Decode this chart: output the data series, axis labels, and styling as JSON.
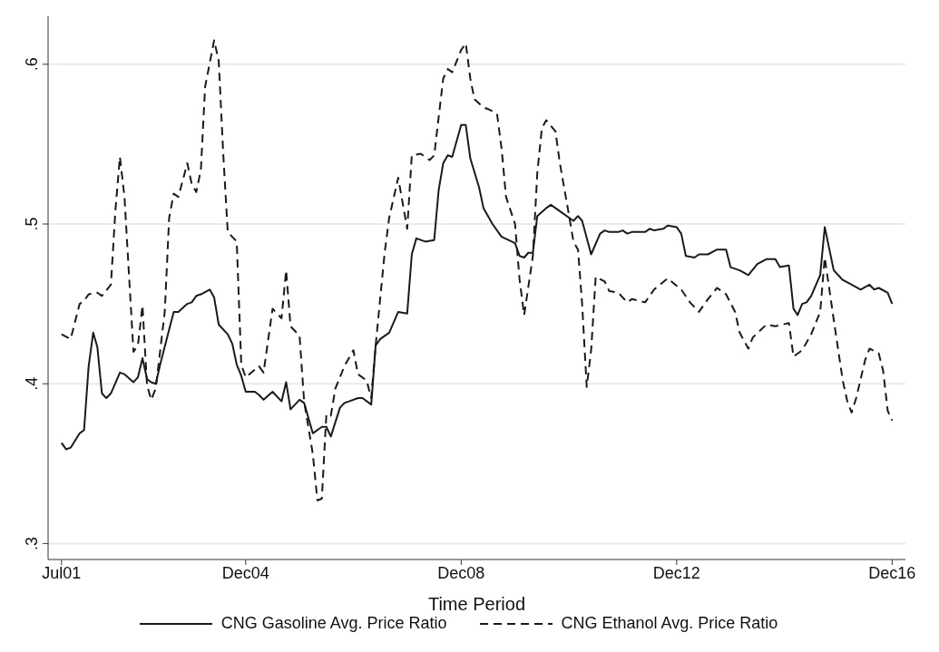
{
  "chart_data": {
    "type": "line",
    "xlabel": "Time Period",
    "xlim": [
      "2001-04",
      "2017-03"
    ],
    "xticks": [
      {
        "value": "2001-07",
        "label": "Jul01"
      },
      {
        "value": "2004-12",
        "label": "Dec04"
      },
      {
        "value": "2008-12",
        "label": "Dec08"
      },
      {
        "value": "2012-12",
        "label": "Dec12"
      },
      {
        "value": "2016-12",
        "label": "Dec16"
      }
    ],
    "ylim": [
      0.29,
      0.63
    ],
    "yticks": [
      {
        "value": 0.3,
        "label": ".3"
      },
      {
        "value": 0.4,
        "label": ".4"
      },
      {
        "value": 0.5,
        "label": ".5"
      },
      {
        "value": 0.6,
        "label": ".6"
      }
    ],
    "grid": "y",
    "legend": "bottom",
    "marker": "none",
    "series": [
      {
        "name": "CNG Gasoline Avg. Price Ratio",
        "color": "#1a1a1a",
        "line_style": "solid",
        "x": [
          "2001-07",
          "2001-08",
          "2001-09",
          "2001-11",
          "2001-12",
          "2002-01",
          "2002-02",
          "2002-03",
          "2002-04",
          "2002-05",
          "2002-06",
          "2002-08",
          "2002-09",
          "2002-11",
          "2002-12",
          "2003-01",
          "2003-02",
          "2003-03",
          "2003-04",
          "2003-05",
          "2003-07",
          "2003-08",
          "2003-09",
          "2003-11",
          "2003-12",
          "2004-01",
          "2004-02",
          "2004-04",
          "2004-05",
          "2004-06",
          "2004-08",
          "2004-09",
          "2004-10",
          "2004-11",
          "2004-12",
          "2005-02",
          "2005-03",
          "2005-04",
          "2005-06",
          "2005-08",
          "2005-09",
          "2005-10",
          "2005-12",
          "2006-01",
          "2006-02",
          "2006-03",
          "2006-05",
          "2006-06",
          "2006-07",
          "2006-09",
          "2006-10",
          "2006-11",
          "2007-01",
          "2007-02",
          "2007-04",
          "2007-05",
          "2007-06",
          "2007-08",
          "2007-10",
          "2007-12",
          "2008-01",
          "2008-02",
          "2008-04",
          "2008-06",
          "2008-07",
          "2008-08",
          "2008-09",
          "2008-10",
          "2008-12",
          "2009-01",
          "2009-02",
          "2009-04",
          "2009-05",
          "2009-07",
          "2009-09",
          "2009-12",
          "2010-01",
          "2010-02",
          "2010-03",
          "2010-04",
          "2010-05",
          "2010-07",
          "2010-08",
          "2010-10",
          "2011-01",
          "2011-02",
          "2011-03",
          "2011-05",
          "2011-07",
          "2011-08",
          "2011-09",
          "2011-11",
          "2011-12",
          "2012-01",
          "2012-02",
          "2012-05",
          "2012-06",
          "2012-07",
          "2012-09",
          "2012-10",
          "2012-12",
          "2013-01",
          "2013-02",
          "2013-04",
          "2013-05",
          "2013-07",
          "2013-09",
          "2013-11",
          "2013-12",
          "2014-02",
          "2014-04",
          "2014-06",
          "2014-08",
          "2014-10",
          "2014-11",
          "2015-01",
          "2015-02",
          "2015-03",
          "2015-04",
          "2015-05",
          "2015-06",
          "2015-08",
          "2015-09",
          "2015-11",
          "2016-01",
          "2016-03",
          "2016-05",
          "2016-07",
          "2016-08",
          "2016-09",
          "2016-11",
          "2016-12"
        ],
        "values": [
          0.363,
          0.359,
          0.36,
          0.369,
          0.371,
          0.411,
          0.432,
          0.423,
          0.394,
          0.391,
          0.394,
          0.407,
          0.406,
          0.401,
          0.404,
          0.416,
          0.403,
          0.401,
          0.4,
          0.412,
          0.434,
          0.445,
          0.445,
          0.45,
          0.451,
          0.455,
          0.456,
          0.459,
          0.454,
          0.437,
          0.431,
          0.425,
          0.412,
          0.405,
          0.395,
          0.395,
          0.393,
          0.39,
          0.395,
          0.389,
          0.401,
          0.384,
          0.39,
          0.388,
          0.378,
          0.369,
          0.373,
          0.373,
          0.367,
          0.385,
          0.388,
          0.389,
          0.391,
          0.391,
          0.387,
          0.424,
          0.428,
          0.432,
          0.445,
          0.444,
          0.481,
          0.491,
          0.489,
          0.49,
          0.521,
          0.538,
          0.543,
          0.542,
          0.562,
          0.562,
          0.541,
          0.523,
          0.51,
          0.5,
          0.492,
          0.488,
          0.48,
          0.479,
          0.482,
          0.482,
          0.505,
          0.51,
          0.512,
          0.508,
          0.502,
          0.505,
          0.502,
          0.481,
          0.494,
          0.496,
          0.495,
          0.495,
          0.496,
          0.494,
          0.495,
          0.495,
          0.497,
          0.496,
          0.497,
          0.499,
          0.498,
          0.494,
          0.48,
          0.479,
          0.481,
          0.481,
          0.484,
          0.484,
          0.473,
          0.471,
          0.468,
          0.475,
          0.478,
          0.478,
          0.473,
          0.474,
          0.447,
          0.443,
          0.45,
          0.451,
          0.455,
          0.468,
          0.498,
          0.471,
          0.465,
          0.462,
          0.459,
          0.462,
          0.459,
          0.46,
          0.457,
          0.45
        ]
      },
      {
        "name": "CNG Ethanol Avg. Price Ratio",
        "color": "#1a1a1a",
        "line_style": "dashed",
        "x": [
          "2001-07",
          "2001-09",
          "2001-11",
          "2001-12",
          "2002-01",
          "2002-03",
          "2002-04",
          "2002-06",
          "2002-07",
          "2002-08",
          "2002-09",
          "2002-10",
          "2002-11",
          "2002-12",
          "2003-01",
          "2003-02",
          "2003-03",
          "2003-04",
          "2003-06",
          "2003-07",
          "2003-08",
          "2003-09",
          "2003-11",
          "2003-12",
          "2004-01",
          "2004-02",
          "2004-03",
          "2004-05",
          "2004-06",
          "2004-07",
          "2004-08",
          "2004-10",
          "2004-11",
          "2004-12",
          "2005-03",
          "2005-04",
          "2005-06",
          "2005-08",
          "2005-09",
          "2005-10",
          "2005-12",
          "2006-01",
          "2006-03",
          "2006-04",
          "2006-05",
          "2006-06",
          "2006-07",
          "2006-08",
          "2006-10",
          "2006-12",
          "2007-01",
          "2007-03",
          "2007-04",
          "2007-05",
          "2007-07",
          "2007-08",
          "2007-10",
          "2007-12",
          "2008-01",
          "2008-03",
          "2008-05",
          "2008-06",
          "2008-08",
          "2008-09",
          "2008-10",
          "2008-12",
          "2009-01",
          "2009-02",
          "2009-03",
          "2009-05",
          "2009-06",
          "2009-08",
          "2009-09",
          "2009-10",
          "2009-12",
          "2010-01",
          "2010-02",
          "2010-04",
          "2010-05",
          "2010-06",
          "2010-07",
          "2010-09",
          "2010-10",
          "2010-12",
          "2011-01",
          "2011-02",
          "2011-03",
          "2011-04",
          "2011-05",
          "2011-06",
          "2011-08",
          "2011-09",
          "2011-11",
          "2012-01",
          "2012-02",
          "2012-05",
          "2012-07",
          "2012-10",
          "2013-01",
          "2013-03",
          "2013-05",
          "2013-07",
          "2013-09",
          "2013-11",
          "2014-01",
          "2014-02",
          "2014-04",
          "2014-05",
          "2014-08",
          "2014-10",
          "2015-01",
          "2015-02",
          "2015-04",
          "2015-06",
          "2015-08",
          "2015-09",
          "2015-11",
          "2016-01",
          "2016-02",
          "2016-03",
          "2016-04",
          "2016-06",
          "2016-07",
          "2016-09",
          "2016-10",
          "2016-11",
          "2016-12"
        ],
        "values": [
          0.431,
          0.428,
          0.45,
          0.452,
          0.456,
          0.457,
          0.455,
          0.462,
          0.508,
          0.542,
          0.517,
          0.469,
          0.42,
          0.424,
          0.449,
          0.399,
          0.39,
          0.397,
          0.445,
          0.504,
          0.519,
          0.517,
          0.538,
          0.525,
          0.52,
          0.534,
          0.586,
          0.615,
          0.602,
          0.545,
          0.495,
          0.489,
          0.412,
          0.404,
          0.411,
          0.407,
          0.447,
          0.441,
          0.471,
          0.436,
          0.43,
          0.389,
          0.356,
          0.327,
          0.328,
          0.381,
          0.38,
          0.397,
          0.411,
          0.421,
          0.406,
          0.402,
          0.391,
          0.424,
          0.482,
          0.504,
          0.529,
          0.497,
          0.543,
          0.544,
          0.54,
          0.543,
          0.591,
          0.597,
          0.595,
          0.609,
          0.613,
          0.591,
          0.578,
          0.573,
          0.572,
          0.569,
          0.547,
          0.517,
          0.5,
          0.465,
          0.443,
          0.48,
          0.532,
          0.56,
          0.565,
          0.558,
          0.538,
          0.506,
          0.489,
          0.484,
          0.45,
          0.398,
          0.421,
          0.467,
          0.464,
          0.458,
          0.457,
          0.451,
          0.453,
          0.451,
          0.459,
          0.466,
          0.459,
          0.451,
          0.445,
          0.453,
          0.46,
          0.456,
          0.445,
          0.432,
          0.422,
          0.429,
          0.437,
          0.436,
          0.438,
          0.417,
          0.421,
          0.431,
          0.445,
          0.479,
          0.44,
          0.402,
          0.389,
          0.382,
          0.391,
          0.415,
          0.422,
          0.419,
          0.408,
          0.383,
          0.377
        ]
      }
    ]
  }
}
